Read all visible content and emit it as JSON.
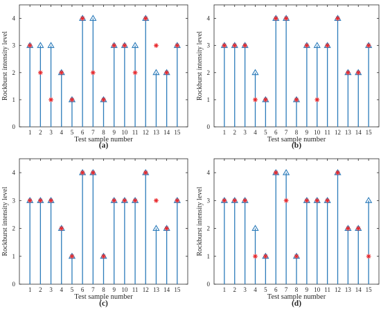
{
  "figure": {
    "colors": {
      "stem": "#2B7BBA",
      "actual_marker": "#2B7BBA",
      "predicted_marker": "#E8262A",
      "axis": "#262626"
    }
  },
  "chart_data": [
    {
      "type": "stem",
      "panel_label": "(a)",
      "xlabel": "Test sample number",
      "ylabel": "Rockburst intensity level",
      "x": [
        1,
        2,
        3,
        4,
        5,
        6,
        7,
        8,
        9,
        10,
        11,
        12,
        13,
        14,
        15
      ],
      "xlim": [
        0,
        16
      ],
      "ylim": [
        0,
        4.5
      ],
      "xticks": [
        1,
        2,
        3,
        4,
        5,
        6,
        7,
        8,
        9,
        10,
        11,
        12,
        13,
        14,
        15
      ],
      "yticks": [
        0,
        1,
        2,
        3,
        4
      ],
      "series": [
        {
          "marker": "triangle",
          "values": [
            3,
            3,
            3,
            2,
            1,
            4,
            4,
            1,
            3,
            3,
            3,
            4,
            2,
            2,
            3
          ]
        },
        {
          "marker": "asterisk",
          "values": [
            3,
            2,
            1,
            2,
            1,
            4,
            2,
            1,
            3,
            3,
            2,
            4,
            3,
            2,
            3
          ]
        }
      ],
      "grid": false
    },
    {
      "type": "stem",
      "panel_label": "(b)",
      "xlabel": "Test sample number",
      "ylabel": "Rockburst intensity level",
      "x": [
        1,
        2,
        3,
        4,
        5,
        6,
        7,
        8,
        9,
        10,
        11,
        12,
        13,
        14,
        15
      ],
      "xlim": [
        0,
        16
      ],
      "ylim": [
        0,
        4.5
      ],
      "xticks": [
        1,
        2,
        3,
        4,
        5,
        6,
        7,
        8,
        9,
        10,
        11,
        12,
        13,
        14,
        15
      ],
      "yticks": [
        0,
        1,
        2,
        3,
        4
      ],
      "series": [
        {
          "marker": "triangle",
          "values": [
            3,
            3,
            3,
            2,
            1,
            4,
            4,
            1,
            3,
            3,
            3,
            4,
            2,
            2,
            3
          ]
        },
        {
          "marker": "asterisk",
          "values": [
            3,
            3,
            3,
            1,
            1,
            4,
            4,
            1,
            3,
            1,
            3,
            4,
            2,
            2,
            3
          ]
        }
      ],
      "grid": false
    },
    {
      "type": "stem",
      "panel_label": "(c)",
      "xlabel": "Test sample number",
      "ylabel": "Rockburst intensity level",
      "x": [
        1,
        2,
        3,
        4,
        5,
        6,
        7,
        8,
        9,
        10,
        11,
        12,
        13,
        14,
        15
      ],
      "xlim": [
        0,
        16
      ],
      "ylim": [
        0,
        4.5
      ],
      "xticks": [
        1,
        2,
        3,
        4,
        5,
        6,
        7,
        8,
        9,
        10,
        11,
        12,
        13,
        14,
        15
      ],
      "yticks": [
        0,
        1,
        2,
        3,
        4
      ],
      "series": [
        {
          "marker": "triangle",
          "values": [
            3,
            3,
            3,
            2,
            1,
            4,
            4,
            1,
            3,
            3,
            3,
            4,
            2,
            2,
            3
          ]
        },
        {
          "marker": "asterisk",
          "values": [
            3,
            3,
            3,
            2,
            1,
            4,
            4,
            1,
            3,
            3,
            3,
            4,
            3,
            2,
            3
          ]
        }
      ],
      "grid": false
    },
    {
      "type": "stem",
      "panel_label": "(d)",
      "xlabel": "Test sample number",
      "ylabel": "Rockburst intensity level",
      "x": [
        1,
        2,
        3,
        4,
        5,
        6,
        7,
        8,
        9,
        10,
        11,
        12,
        13,
        14,
        15
      ],
      "xlim": [
        0,
        16
      ],
      "ylim": [
        0,
        4.5
      ],
      "xticks": [
        1,
        2,
        3,
        4,
        5,
        6,
        7,
        8,
        9,
        10,
        11,
        12,
        13,
        14,
        15
      ],
      "yticks": [
        0,
        1,
        2,
        3,
        4
      ],
      "series": [
        {
          "marker": "triangle",
          "values": [
            3,
            3,
            3,
            2,
            1,
            4,
            4,
            1,
            3,
            3,
            3,
            4,
            2,
            2,
            3
          ]
        },
        {
          "marker": "asterisk",
          "values": [
            3,
            3,
            3,
            1,
            1,
            4,
            3,
            1,
            3,
            3,
            3,
            4,
            2,
            2,
            1
          ]
        }
      ],
      "grid": false
    }
  ]
}
